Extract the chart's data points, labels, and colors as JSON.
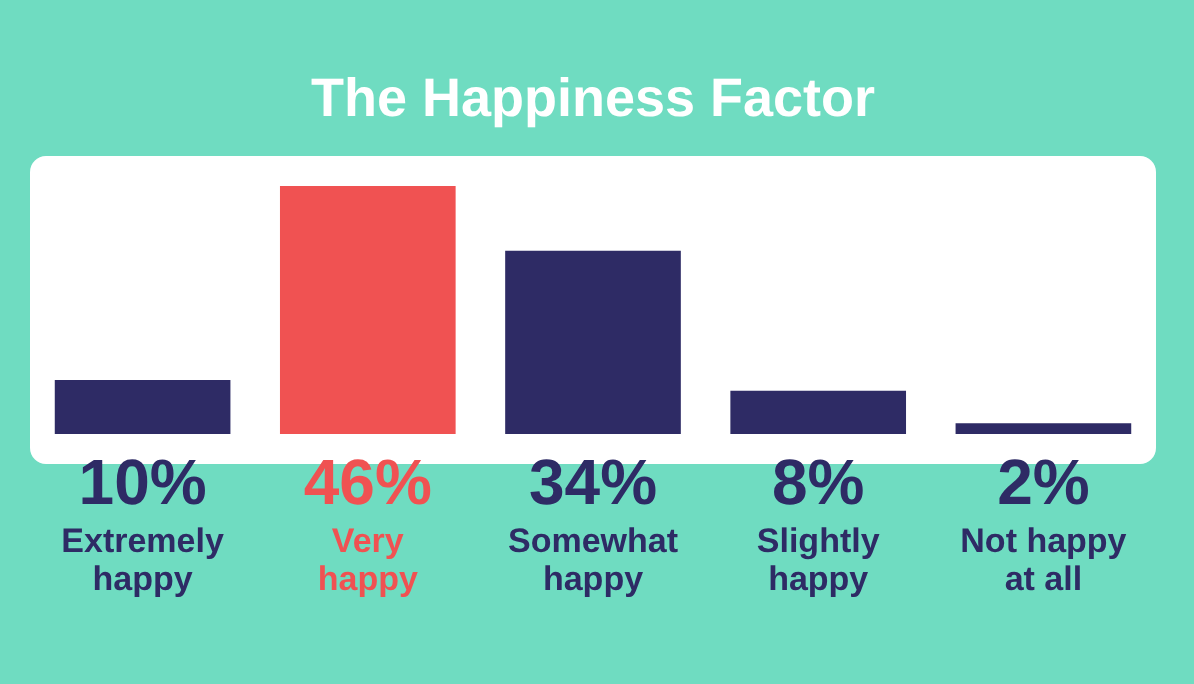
{
  "chart_data": {
    "type": "bar",
    "title": "The Happiness Factor",
    "categories": [
      "Extremely\nhappy",
      "Very\nhappy",
      "Somewhat\nhappy",
      "Slightly\nhappy",
      "Not happy\nat all"
    ],
    "values": [
      10,
      46,
      34,
      8,
      2
    ],
    "colors": [
      "#2e2b65",
      "#f05252",
      "#2e2b65",
      "#2e2b65",
      "#2e2b65"
    ],
    "value_labels": [
      "10%",
      "46%",
      "34%",
      "8%",
      "2%"
    ]
  }
}
